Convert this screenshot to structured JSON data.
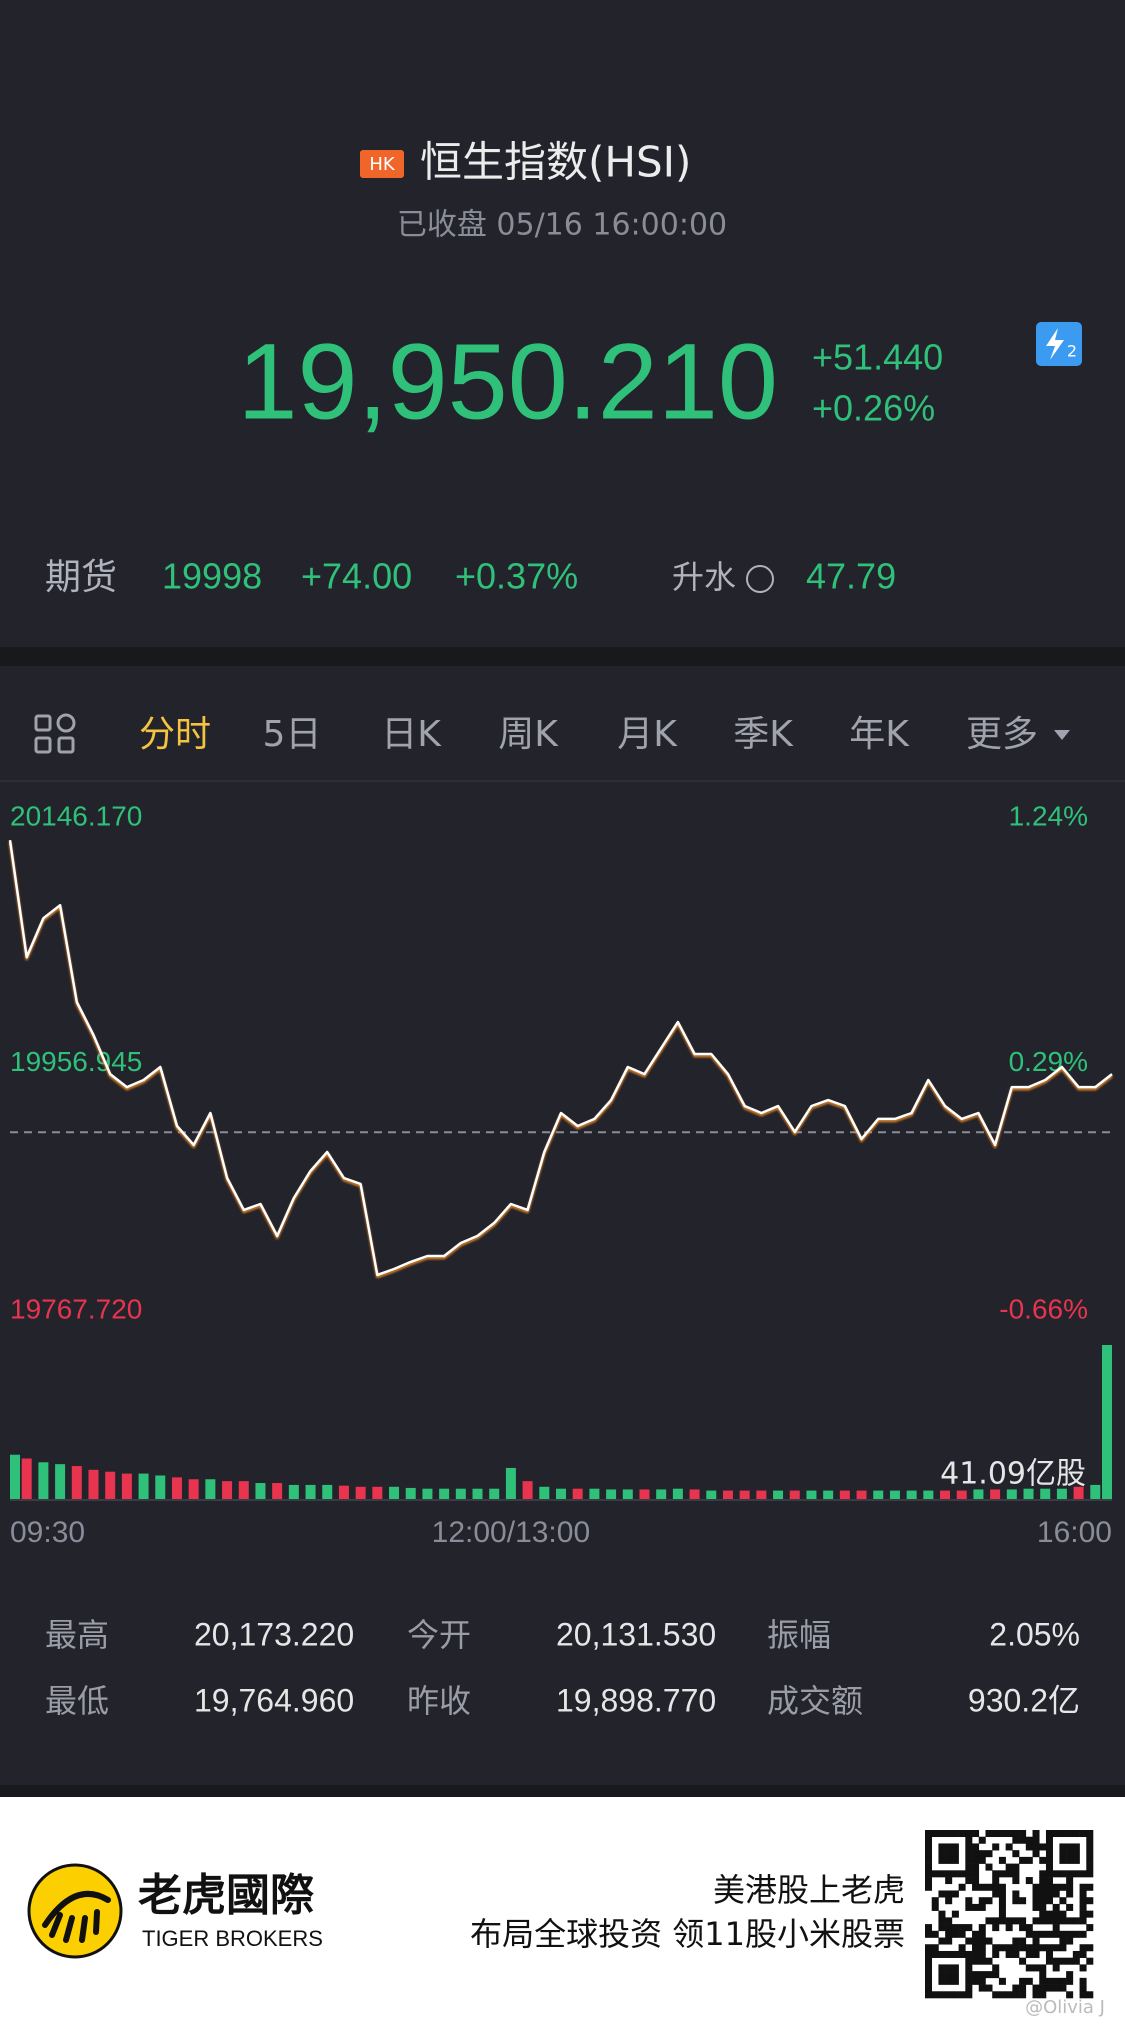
{
  "header": {
    "badge": "HK",
    "title": "恒生指数(HSI)",
    "status": "已收盘 05/16 16:00:00"
  },
  "quote": {
    "price": "19,950.210",
    "change": "+51.440",
    "change_pct": "+0.26%"
  },
  "futures": {
    "label": "期货",
    "price": "19998",
    "change": "+74.00",
    "change_pct": "+0.37%",
    "premium_label": "升水",
    "premium": "47.79"
  },
  "tabs": {
    "items": [
      "分时",
      "5日",
      "日K",
      "周K",
      "月K",
      "季K",
      "年K",
      "更多"
    ],
    "active": 0
  },
  "chart_data": {
    "type": "line",
    "color": "#ffffff",
    "up_color": "#2fc17a",
    "down_color": "#e8344e",
    "x": [
      0,
      5,
      10,
      15,
      20,
      25,
      30,
      35,
      40,
      45,
      50,
      55,
      60,
      65,
      70,
      75,
      80,
      85,
      90,
      95,
      100,
      105,
      110,
      115,
      120,
      125,
      130,
      135,
      140,
      145,
      150,
      155,
      160,
      165,
      170,
      175,
      180,
      185,
      190,
      195,
      200,
      205,
      210,
      215,
      220,
      225,
      230,
      235,
      240,
      245,
      250,
      255,
      260,
      265,
      270,
      275,
      280,
      285,
      290,
      295,
      300,
      305,
      310,
      315,
      320,
      325,
      330
    ],
    "values": [
      20146,
      20047,
      20080,
      20091,
      20009,
      19981,
      19948,
      19937,
      19943,
      19954,
      19904,
      19888,
      19915,
      19860,
      19833,
      19838,
      19811,
      19843,
      19866,
      19882,
      19860,
      19855,
      19778,
      19783,
      19789,
      19794,
      19794,
      19805,
      19811,
      19822,
      19838,
      19833,
      19882,
      19915,
      19904,
      19910,
      19926,
      19954,
      19948,
      19970,
      19992,
      19965,
      19965,
      19948,
      19921,
      19915,
      19921,
      19899,
      19921,
      19926,
      19921,
      19893,
      19910,
      19910,
      19915,
      19943,
      19921,
      19910,
      19915,
      19888,
      19937,
      19937,
      19943,
      19954,
      19937,
      19937,
      19948
    ],
    "xlim": [
      0,
      330
    ],
    "xticks": [
      {
        "value": 0,
        "label": "09:30"
      },
      {
        "value": 150,
        "label": "12:00/13:00"
      },
      {
        "value": 330,
        "label": "16:00"
      }
    ],
    "ylim": [
      19767.72,
      20146.17
    ],
    "yticks": [
      {
        "value": 20146.17,
        "label": "20146.170"
      },
      {
        "value": 19956.945,
        "label": "19956.945"
      },
      {
        "value": 19767.72,
        "label": "19767.720"
      }
    ],
    "y2lim": [
      -0.66,
      1.24
    ],
    "y2ticks": [
      {
        "value": 1.24,
        "label": "1.24%"
      },
      {
        "value": 0.29,
        "label": "0.29%"
      },
      {
        "value": -0.66,
        "label": "-0.66%"
      }
    ],
    "baseline": 19898.77,
    "volume": {
      "values": [
        12,
        11,
        10,
        9.5,
        9,
        8,
        7.5,
        7,
        7,
        6.5,
        6,
        5.5,
        5.5,
        5,
        5,
        4.5,
        4.5,
        4,
        4,
        4,
        3.8,
        3.5,
        3.5,
        3.5,
        3.2,
        3,
        3,
        3,
        3,
        3,
        8.5,
        5,
        3.5,
        3,
        3,
        3,
        2.8,
        2.8,
        2.8,
        2.8,
        3,
        2.8,
        2.5,
        2.5,
        2.5,
        2.5,
        2.5,
        2.5,
        2.5,
        2.5,
        2.5,
        2.5,
        2.5,
        2.5,
        2.5,
        2.5,
        2.5,
        2.5,
        2.8,
        2.8,
        2.8,
        3,
        3,
        3,
        3.5,
        4,
        41.09
      ],
      "ylim": [
        0,
        41.09
      ],
      "yticks": [
        {
          "value": 41.09,
          "label": "41.09亿股"
        }
      ]
    }
  },
  "stats": {
    "rows": [
      [
        [
          "最高",
          "20,173.220"
        ],
        [
          "今开",
          "20,131.530"
        ],
        [
          "振幅",
          "2.05%"
        ]
      ],
      [
        [
          "最低",
          "19,764.960"
        ],
        [
          "昨收",
          "19,898.770"
        ],
        [
          "成交额",
          "930.2亿"
        ]
      ]
    ]
  },
  "footer": {
    "brand": "老虎國際",
    "brand_en": "TIGER BROKERS",
    "slogan": "美港股上老虎",
    "promo": "布局全球投资 领11股小米股票",
    "watermark": "@Olivia J"
  }
}
